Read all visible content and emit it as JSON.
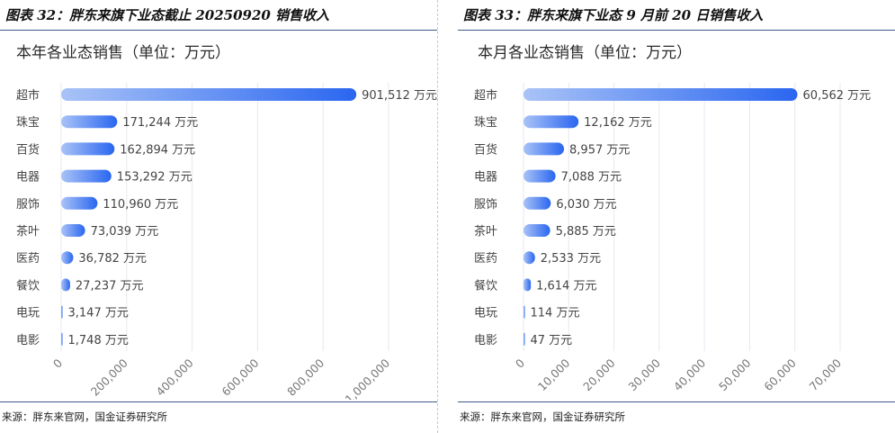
{
  "figures": [
    {
      "fig_title": "图表 32：胖东来旗下业态截止 20250920 销售收入",
      "source": "来源：胖东来官网，国金证券研究所"
    },
    {
      "fig_title": "图表 33：胖东来旗下业态 9 月前 20 日销售收入",
      "source": "来源：胖东来官网，国金证券研究所"
    }
  ],
  "chart_data": [
    {
      "type": "bar",
      "orientation": "horizontal",
      "title": "本年各业态销售（单位：万元）",
      "categories": [
        "超市",
        "珠宝",
        "百货",
        "电器",
        "服饰",
        "茶叶",
        "医药",
        "餐饮",
        "电玩",
        "电影"
      ],
      "values": [
        901512,
        171244,
        162894,
        153292,
        110960,
        73039,
        36782,
        27237,
        3147,
        1748
      ],
      "value_labels": [
        "901,512 万元",
        "171,244 万元",
        "162,894 万元",
        "153,292 万元",
        "110,960 万元",
        "73,039 万元",
        "36,782 万元",
        "27,237 万元",
        "3,147 万元",
        "1,748 万元"
      ],
      "xlim": [
        0,
        1000000
      ],
      "xticks": [
        "0",
        "200,000",
        "400,000",
        "600,000",
        "800,000",
        "1,000,000"
      ],
      "tick_values": [
        0,
        200000,
        400000,
        600000,
        800000,
        1000000
      ],
      "grid": true,
      "bar_color": "#2a66f0"
    },
    {
      "type": "bar",
      "orientation": "horizontal",
      "title": "本月各业态销售（单位：万元）",
      "categories": [
        "超市",
        "珠宝",
        "百货",
        "电器",
        "服饰",
        "茶叶",
        "医药",
        "餐饮",
        "电玩",
        "电影"
      ],
      "values": [
        60562,
        12162,
        8957,
        7088,
        6030,
        5885,
        2533,
        1614,
        114,
        47
      ],
      "value_labels": [
        "60,562 万元",
        "12,162 万元",
        "8,957 万元",
        "7,088 万元",
        "6,030 万元",
        "5,885 万元",
        "2,533 万元",
        "1,614 万元",
        "114 万元",
        "47 万元"
      ],
      "xlim": [
        0,
        70000
      ],
      "xticks": [
        "0",
        "10,000",
        "20,000",
        "30,000",
        "40,000",
        "50,000",
        "60,000",
        "70,000"
      ],
      "tick_values": [
        0,
        10000,
        20000,
        30000,
        40000,
        50000,
        60000,
        70000
      ],
      "grid": true,
      "bar_color": "#2a66f0"
    }
  ]
}
